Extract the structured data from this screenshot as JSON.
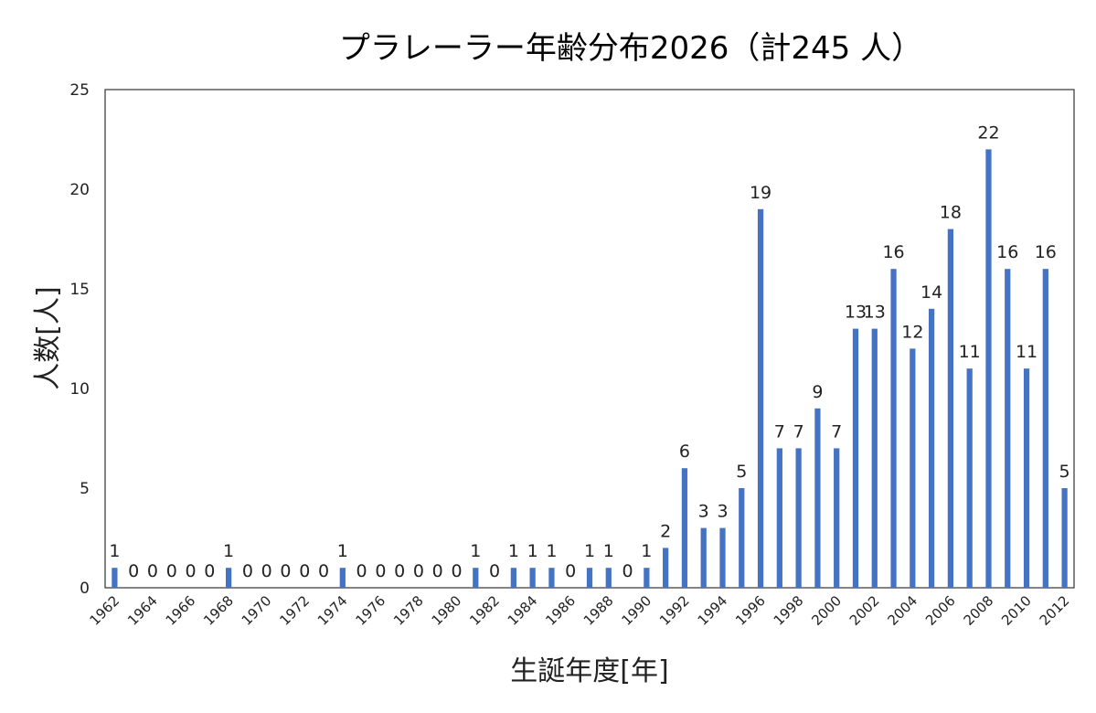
{
  "chart_data": {
    "type": "bar",
    "title": "プラレーラー年齢分布2026（計245 人）",
    "xlabel": "生誕年度[年]",
    "ylabel": "人数[人]",
    "ylim": [
      0,
      25
    ],
    "yticks": [
      0,
      5,
      10,
      15,
      20,
      25
    ],
    "grid": false,
    "legend": "none",
    "bar_color": "#4472C4",
    "categories": [
      "1962",
      "1963",
      "1964",
      "1965",
      "1966",
      "1967",
      "1968",
      "1969",
      "1970",
      "1971",
      "1972",
      "1973",
      "1974",
      "1975",
      "1976",
      "1977",
      "1978",
      "1979",
      "1980",
      "1981",
      "1982",
      "1983",
      "1984",
      "1985",
      "1986",
      "1987",
      "1988",
      "1989",
      "1990",
      "1991",
      "1992",
      "1993",
      "1994",
      "1995",
      "1996",
      "1997",
      "1998",
      "1999",
      "2000",
      "2001",
      "2002",
      "2003",
      "2004",
      "2005",
      "2006",
      "2007",
      "2008",
      "2009",
      "2010",
      "2011",
      "2012"
    ],
    "shown_tick_labels": [
      "1962",
      "1964",
      "1966",
      "1968",
      "1970",
      "1972",
      "1974",
      "1976",
      "1978",
      "1980",
      "1982",
      "1984",
      "1986",
      "1988",
      "1990",
      "1992",
      "1994",
      "1996",
      "1998",
      "2000",
      "2002",
      "2004",
      "2006",
      "2008",
      "2010",
      "2012"
    ],
    "values": [
      1,
      0,
      0,
      0,
      0,
      0,
      1,
      0,
      0,
      0,
      0,
      0,
      1,
      0,
      0,
      0,
      0,
      0,
      0,
      1,
      0,
      1,
      1,
      1,
      0,
      1,
      1,
      0,
      1,
      2,
      6,
      3,
      3,
      5,
      19,
      7,
      7,
      9,
      7,
      13,
      13,
      16,
      12,
      14,
      18,
      11,
      22,
      16,
      11,
      16,
      5
    ]
  }
}
